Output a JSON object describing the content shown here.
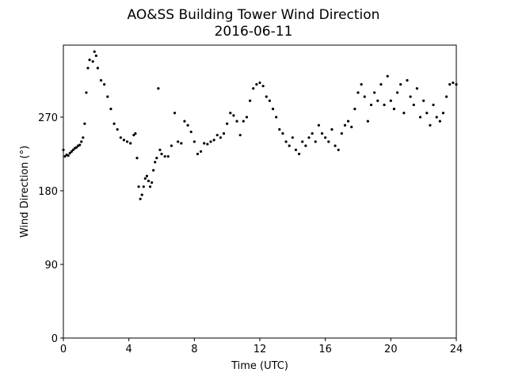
{
  "chart_data": {
    "type": "scatter",
    "title": "AO&SS Building Tower Wind Direction",
    "subtitle": "2016-06-11",
    "xlabel": "Time (UTC)",
    "ylabel": "Wind Direction (°)",
    "color": "#000000",
    "xlim": [
      0,
      24
    ],
    "ylim": [
      0,
      358
    ],
    "xticks": [
      0,
      4,
      8,
      12,
      16,
      20,
      24
    ],
    "yticks": [
      0,
      90,
      180,
      270
    ],
    "x": [
      0,
      0.1,
      0.2,
      0.3,
      0.4,
      0.5,
      0.6,
      0.7,
      0.8,
      0.9,
      1.0,
      1.1,
      1.2,
      1.3,
      1.4,
      1.5,
      1.6,
      1.8,
      1.9,
      2.0,
      2.1,
      2.3,
      2.5,
      2.7,
      2.9,
      3.1,
      3.3,
      3.5,
      3.7,
      3.9,
      4.1,
      4.3,
      4.4,
      4.5,
      4.6,
      4.7,
      4.8,
      4.9,
      5.0,
      5.1,
      5.2,
      5.3,
      5.4,
      5.5,
      5.6,
      5.7,
      5.8,
      5.9,
      6.0,
      6.2,
      6.4,
      6.6,
      6.8,
      7.0,
      7.2,
      7.4,
      7.6,
      7.8,
      8.0,
      8.2,
      8.4,
      8.6,
      8.8,
      9.0,
      9.2,
      9.4,
      9.6,
      9.8,
      10.0,
      10.2,
      10.4,
      10.6,
      10.8,
      11.0,
      11.2,
      11.4,
      11.6,
      11.8,
      12.0,
      12.2,
      12.4,
      12.6,
      12.8,
      13.0,
      13.2,
      13.4,
      13.6,
      13.8,
      14.0,
      14.2,
      14.4,
      14.6,
      14.8,
      15.0,
      15.2,
      15.4,
      15.6,
      15.8,
      16.0,
      16.2,
      16.4,
      16.6,
      16.8,
      17.0,
      17.2,
      17.4,
      17.6,
      17.8,
      18.0,
      18.2,
      18.4,
      18.6,
      18.8,
      19.0,
      19.2,
      19.4,
      19.6,
      19.8,
      20.0,
      20.2,
      20.4,
      20.6,
      20.8,
      21.0,
      21.2,
      21.4,
      21.6,
      21.8,
      22.0,
      22.2,
      22.4,
      22.6,
      22.8,
      23.0,
      23.2,
      23.4,
      23.6,
      23.8,
      24.0
    ],
    "values": [
      230,
      222,
      224,
      223,
      226,
      228,
      230,
      232,
      233,
      235,
      236,
      240,
      245,
      262,
      300,
      330,
      340,
      338,
      350,
      345,
      330,
      315,
      310,
      295,
      280,
      262,
      255,
      245,
      242,
      240,
      238,
      248,
      250,
      220,
      185,
      170,
      175,
      185,
      195,
      198,
      192,
      185,
      190,
      205,
      215,
      220,
      305,
      230,
      225,
      222,
      222,
      235,
      275,
      240,
      238,
      265,
      260,
      252,
      240,
      225,
      228,
      238,
      237,
      240,
      242,
      248,
      245,
      250,
      262,
      275,
      272,
      265,
      248,
      265,
      270,
      290,
      305,
      310,
      312,
      308,
      295,
      290,
      280,
      270,
      255,
      250,
      240,
      235,
      245,
      230,
      225,
      240,
      235,
      245,
      250,
      240,
      260,
      250,
      245,
      240,
      255,
      235,
      230,
      250,
      260,
      265,
      258,
      280,
      300,
      310,
      295,
      265,
      285,
      300,
      290,
      310,
      285,
      320,
      290,
      280,
      300,
      310,
      275,
      315,
      295,
      285,
      305,
      270,
      290,
      275,
      260,
      285,
      270,
      265,
      275,
      295,
      310,
      312,
      310
    ]
  }
}
